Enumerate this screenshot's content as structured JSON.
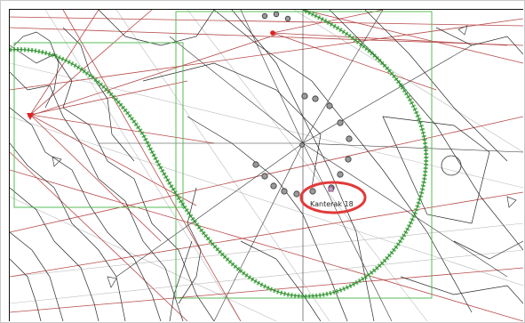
{
  "map": {
    "highlight_label": "Kanterak 18",
    "colors": {
      "background": "#ffffff",
      "linework": "#2b2b2b",
      "road_red": "#b84a4a",
      "boundary_green": "#49b449",
      "selection_red": "#e23a3a",
      "marker_dark": "#555555"
    },
    "icons": {
      "survey_point": "circle-point-icon",
      "station": "red-station-icon",
      "selection": "selection-ellipse-icon"
    }
  }
}
